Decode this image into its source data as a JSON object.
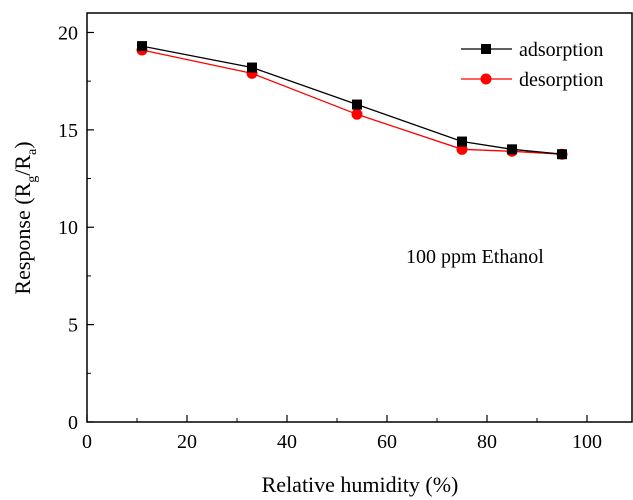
{
  "chart_data": {
    "type": "line",
    "title": "",
    "xlabel": "Relative humidity (%)",
    "ylabel": {
      "main": "Response (R",
      "sub1": "g",
      "mid": "/R",
      "sub2": "a",
      "end": ")"
    },
    "xlim": [
      0,
      109
    ],
    "ylim": [
      0,
      21
    ],
    "xticks": [
      0,
      20,
      40,
      60,
      80,
      100
    ],
    "yticks": [
      0,
      5,
      10,
      15,
      20
    ],
    "x": [
      11,
      33,
      54,
      75,
      85,
      95
    ],
    "series": [
      {
        "name": "adsorption",
        "color": "#000000",
        "marker": "square",
        "values": [
          19.3,
          18.2,
          16.3,
          14.4,
          14.0,
          13.75
        ]
      },
      {
        "name": "desorption",
        "color": "#ff0000",
        "marker": "circle",
        "values": [
          19.1,
          17.9,
          15.8,
          14.0,
          13.9,
          13.75
        ]
      }
    ],
    "legend_position": "top-right",
    "grid": false,
    "annotation": "100 ppm Ethanol"
  }
}
